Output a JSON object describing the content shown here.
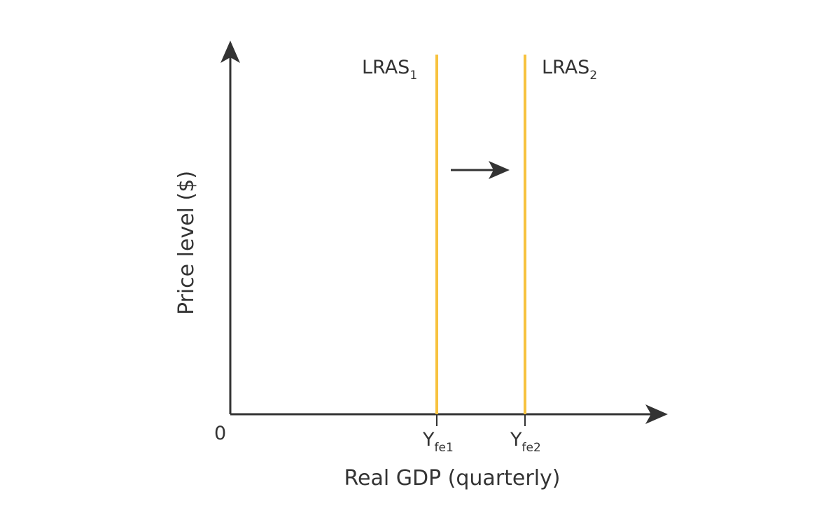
{
  "axes": {
    "y_title": "Price level ($)",
    "x_title": "Real GDP (quarterly)",
    "origin": "0"
  },
  "curves": [
    {
      "name": "LRAS",
      "subscript": "1",
      "color": "#f7c23e"
    },
    {
      "name": "LRAS",
      "subscript": "2",
      "color": "#f7c23e"
    }
  ],
  "ticks": [
    {
      "main": "Y",
      "sub": "fe1"
    },
    {
      "main": "Y",
      "sub": "fe2"
    }
  ],
  "colors": {
    "axis": "#333333",
    "curve": "#f7c23e",
    "arrow": "#333333"
  }
}
